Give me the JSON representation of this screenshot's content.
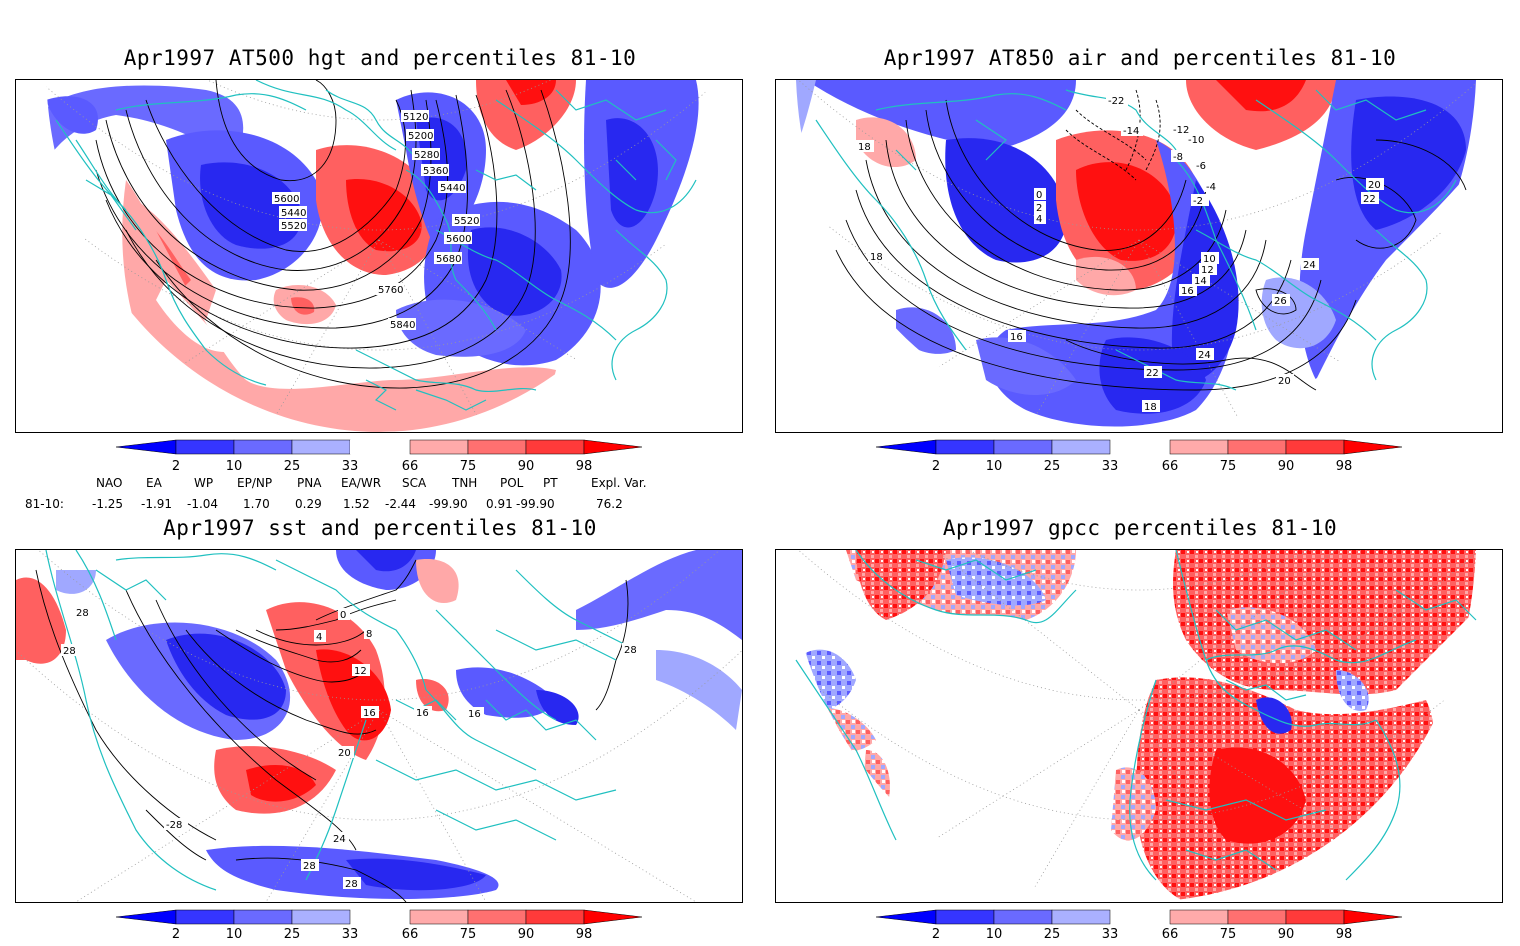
{
  "panels": [
    {
      "id": "p1",
      "title": "Apr1997 AT500 hgt and percentiles 81-10",
      "contour_labels": [
        "5120",
        "5200",
        "5280",
        "5360",
        "5440",
        "5520",
        "5600",
        "5440",
        "5520",
        "5600",
        "5680",
        "5760",
        "5840"
      ]
    },
    {
      "id": "p2",
      "title": "Apr1997 AT850 air and percentiles 81-10",
      "contour_labels": [
        "-22",
        "-14",
        "-12",
        "-10",
        "-8",
        "-6",
        "-4",
        "-2",
        "0",
        "2",
        "4",
        "10",
        "12",
        "14",
        "16",
        "16",
        "18",
        "18",
        "20",
        "20",
        "22",
        "22",
        "24",
        "24",
        "26",
        "18"
      ]
    },
    {
      "id": "p3",
      "title": "Apr1997 sst and percentiles 81-10",
      "contour_labels": [
        "28",
        "28",
        "0",
        "4",
        "8",
        "12",
        "16",
        "16",
        "16",
        "20",
        "24",
        "28",
        "28",
        "-28",
        "28"
      ]
    },
    {
      "id": "p4",
      "title": "Apr1997 gpcc percentiles 81-10",
      "contour_labels": []
    }
  ],
  "colorbar": {
    "labels": [
      "2",
      "10",
      "25",
      "33",
      "66",
      "75",
      "90",
      "98"
    ],
    "colors": [
      "#0000ff",
      "#3535ff",
      "#6a6aff",
      "#aab0ff",
      "#ffffff",
      "#ffaaaa",
      "#ff7070",
      "#ff3a3a",
      "#ff0000"
    ]
  },
  "indices": {
    "header": [
      "NAO",
      "EA",
      "WP",
      "EP/NP",
      "PNA",
      "EA/WR",
      "SCA",
      "TNH",
      "POL",
      "PT",
      "Expl. Var."
    ],
    "row_label": "81-10:",
    "values": [
      "-1.25",
      "-1.91",
      "-1.04",
      "1.70",
      "0.29",
      "1.52",
      "-2.44",
      "-99.90",
      "0.91",
      "-99.90",
      "76.2"
    ]
  },
  "colors": {
    "coast": "#20c0c0",
    "strong_blue": "#2828f0",
    "mid_blue": "#5a5aff",
    "light_blue": "#a0a8ff",
    "light_red": "#ffa8a8",
    "mid_red": "#ff6060",
    "strong_red": "#ff1010",
    "contour": "#000000",
    "grid": "#9a9a9a"
  }
}
